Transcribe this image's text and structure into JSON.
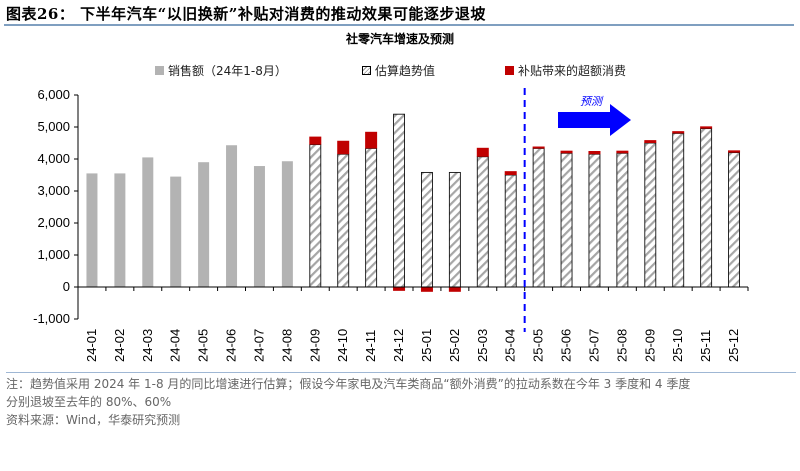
{
  "header": {
    "title": "图表26：  下半年汽车“以旧换新”补贴对消费的推动效果可能逐步退坡",
    "subtitle": "社零汽车增速及预测"
  },
  "legend": [
    {
      "label": "销售额（24年1-8月）",
      "swatch": "gray",
      "color": "#b3b3b3"
    },
    {
      "label": "估算趋势值",
      "swatch": "hatch",
      "color": "#999999"
    },
    {
      "label": "补贴带来的超额消费",
      "swatch": "red",
      "color": "#c00000"
    }
  ],
  "annotation": {
    "forecast_label": "预测",
    "forecast_color": "#0000ff",
    "divider_between": [
      "25-04",
      "25-05"
    ]
  },
  "colors": {
    "actual": "#b3b3b3",
    "trend_hatch": "#999999",
    "excess": "#c00000",
    "divider": "#0000ff"
  },
  "chart_data": {
    "type": "bar",
    "title": "社零汽车增速及预测",
    "xlabel": "",
    "ylabel": "",
    "ylim": [
      -1000,
      6000
    ],
    "yticks": [
      -1000,
      0,
      1000,
      2000,
      3000,
      4000,
      5000,
      6000
    ],
    "ytick_labels": [
      "-1,000",
      "0",
      "1,000",
      "2,000",
      "3,000",
      "4,000",
      "5,000",
      "6,000"
    ],
    "categories": [
      "24-01",
      "24-02",
      "24-03",
      "24-04",
      "24-05",
      "24-06",
      "24-07",
      "24-08",
      "24-09",
      "24-10",
      "24-11",
      "24-12",
      "25-01",
      "25-02",
      "25-03",
      "25-04",
      "25-05",
      "25-06",
      "25-07",
      "25-08",
      "25-09",
      "25-10",
      "25-11",
      "25-12"
    ],
    "series": [
      {
        "name": "销售额（24年1-8月）",
        "values": [
          3550,
          3550,
          4050,
          3450,
          3900,
          4430,
          3780,
          3930,
          null,
          null,
          null,
          null,
          null,
          null,
          null,
          null,
          null,
          null,
          null,
          null,
          null,
          null,
          null,
          null
        ]
      },
      {
        "name": "估算趋势值",
        "values": [
          null,
          null,
          null,
          null,
          null,
          null,
          null,
          null,
          4450,
          4150,
          4330,
          5400,
          3580,
          3580,
          4070,
          3500,
          4330,
          4180,
          4150,
          4180,
          4500,
          4800,
          4950,
          4200
        ]
      },
      {
        "name": "补贴带来的超额消费",
        "values": [
          null,
          null,
          null,
          null,
          null,
          null,
          null,
          null,
          250,
          420,
          520,
          -120,
          -150,
          -150,
          280,
          120,
          60,
          80,
          100,
          80,
          90,
          70,
          70,
          70
        ]
      }
    ],
    "stacked": true,
    "grid": false,
    "legend_position": "top"
  },
  "footer": {
    "note_line1": "注：趋势值采用 2024 年 1-8 月的同比增速进行估算；假设今年家电及汽车类商品“额外消费”的拉动系数在今年 3 季度和 4 季度",
    "note_line2": "分别退坡至去年的 80%、60%",
    "source": "资料来源：Wind，华泰研究预测"
  }
}
